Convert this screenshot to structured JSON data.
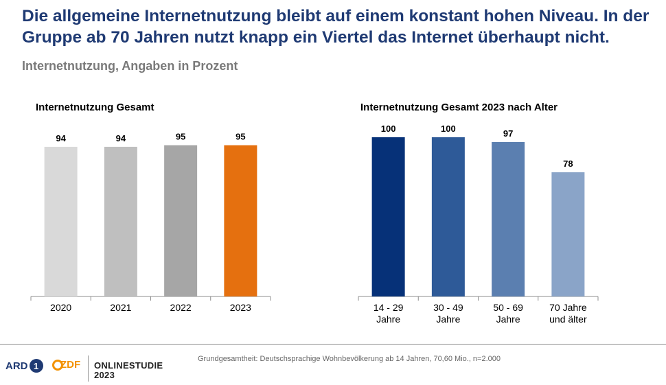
{
  "header": {
    "headline": "Die allgemeine Internetnutzung bleibt auf einem konstant hohen Niveau. In der Gruppe ab 70 Jahren nutzt knapp ein Viertel das Internet überhaupt nicht.",
    "subtitle": "Internetnutzung, Angaben in Prozent"
  },
  "chart_data": [
    {
      "type": "bar",
      "title": "Internetnutzung Gesamt",
      "categories": [
        "2020",
        "2021",
        "2022",
        "2023"
      ],
      "values": [
        94,
        94,
        95,
        95
      ],
      "colors": [
        "#d9d9d9",
        "#bfbfbf",
        "#a6a6a6",
        "#e5700f"
      ],
      "ylim": [
        0,
        100
      ],
      "grid": false
    },
    {
      "type": "bar",
      "title": "Internetnutzung Gesamt 2023 nach Alter",
      "categories": [
        [
          "14 - 29",
          "Jahre"
        ],
        [
          "30 - 49",
          "Jahre"
        ],
        [
          "50 - 69",
          "Jahre"
        ],
        [
          "70 Jahre",
          "und älter"
        ]
      ],
      "values": [
        100,
        100,
        97,
        78
      ],
      "colors": [
        "#063178",
        "#2e5a98",
        "#5b7fb0",
        "#8aa4c8"
      ],
      "ylim": [
        0,
        100
      ],
      "grid": false
    }
  ],
  "footer": {
    "note": "Grundgesamtheit: Deutschsprachige Wohnbevölkerung ab 14 Jahren, 70,60 Mio., n=2.000",
    "logo_ard_text": "ARD",
    "logo_ard_number": "1",
    "logo_zdf_text": "ZDF",
    "brand_line1": "ONLINESTUDIE",
    "brand_line2": "2023"
  }
}
